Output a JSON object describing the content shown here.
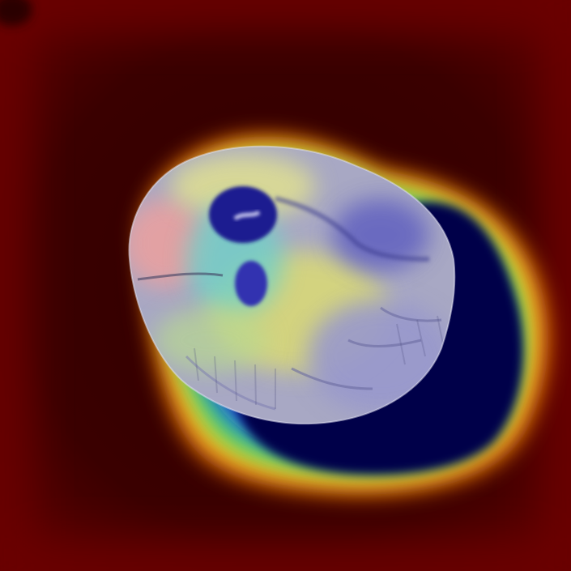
{
  "image": {
    "kind": "brain-mri-with-heatmap-overlay",
    "colormap": "jet",
    "colors": {
      "background_red": "#6a0000",
      "background_dark": "#330000",
      "cold_core": "#000050",
      "cool_blue": "#2020c0",
      "cyan": "#30d8d0",
      "green": "#60d040",
      "yellow": "#e0e040",
      "orange": "#f08020",
      "tissue_gray": "#b4b4c8"
    }
  }
}
